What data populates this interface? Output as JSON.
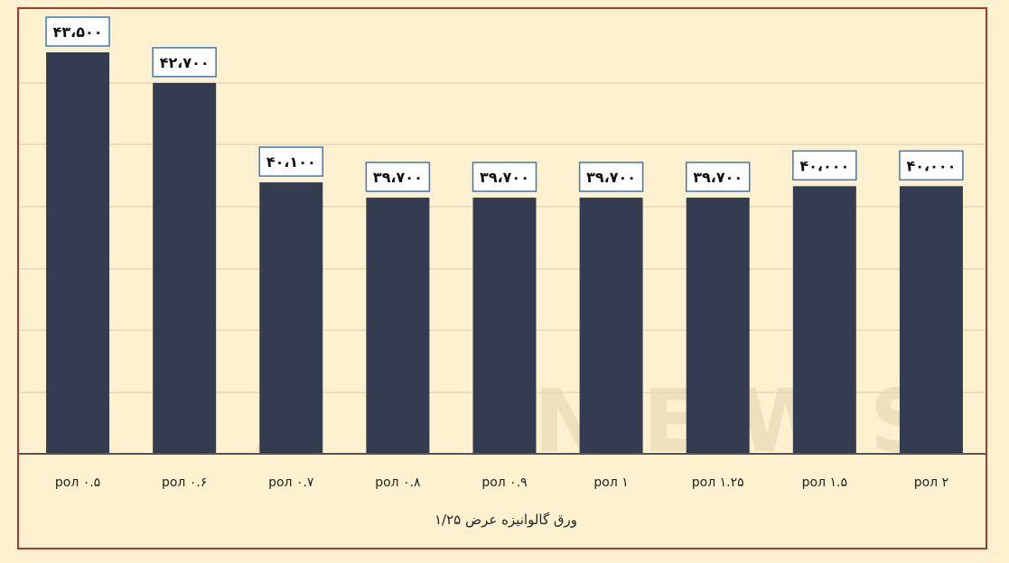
{
  "chart_data": {
    "type": "bar",
    "categories": [
      "۰.۵ рол",
      "۰.۶ рол",
      "۰.۷ рол",
      "۰.۸ рол",
      "۰.۹ рол",
      "۱ рол",
      "۱.۲۵ рол",
      "۱.۵ рол",
      "۲ рол"
    ],
    "values": [
      43500,
      42700,
      40100,
      39700,
      39700,
      39700,
      39700,
      40000,
      40000
    ],
    "value_labels": [
      "۴۳،۵۰۰",
      "۴۲،۷۰۰",
      "۴۰،۱۰۰",
      "۳۹،۷۰۰",
      "۳۹،۷۰۰",
      "۳۹،۷۰۰",
      "۳۹،۷۰۰",
      "۴۰،۰۰۰",
      "۴۰،۰۰۰"
    ],
    "xlabel": "ورق گالوانیزه عرض ۱/۲۵",
    "ylabel": "",
    "ylim": [
      33000,
      43500
    ],
    "grid": true,
    "watermark": "AHAN NEWS",
    "colors": {
      "bar": "#333c50",
      "background": "#fdf1cf",
      "frame": "#a83a2e",
      "label_box_border": "#3c78c0",
      "label_box_fill": "#ffffff",
      "grid": "#d9cba6"
    }
  }
}
